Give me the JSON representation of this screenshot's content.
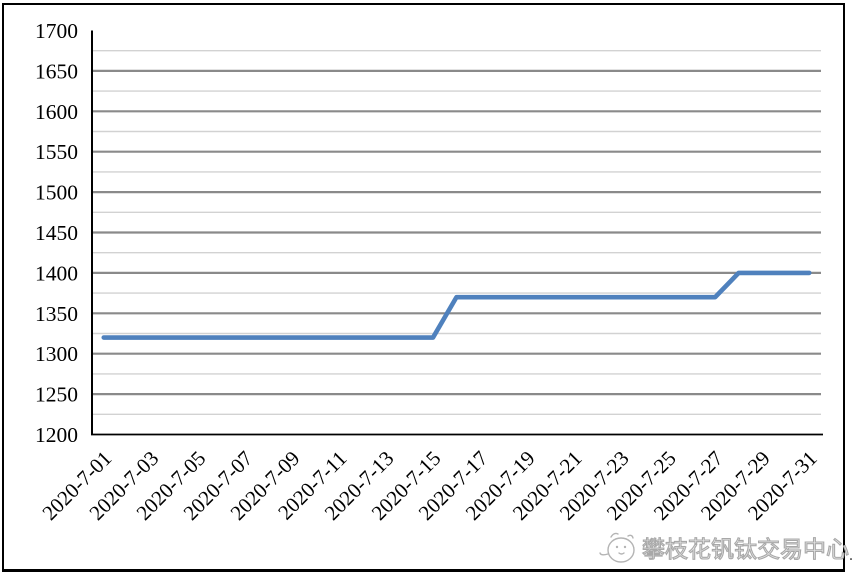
{
  "chart": {
    "watermark": {
      "text": "攀枝花钒钛交易中心",
      "icon": "mascot-face-icon"
    },
    "stray_period": "."
  },
  "chart_data": {
    "type": "line",
    "title": "",
    "xlabel": "",
    "ylabel": "",
    "x": [
      "2020-7-01",
      "2020-7-02",
      "2020-7-03",
      "2020-7-04",
      "2020-7-05",
      "2020-7-06",
      "2020-7-07",
      "2020-7-08",
      "2020-7-09",
      "2020-7-10",
      "2020-7-11",
      "2020-7-12",
      "2020-7-13",
      "2020-7-14",
      "2020-7-15",
      "2020-7-16",
      "2020-7-17",
      "2020-7-18",
      "2020-7-19",
      "2020-7-20",
      "2020-7-21",
      "2020-7-22",
      "2020-7-23",
      "2020-7-24",
      "2020-7-25",
      "2020-7-26",
      "2020-7-27",
      "2020-7-28",
      "2020-7-29",
      "2020-7-30",
      "2020-7-31"
    ],
    "values": [
      1320,
      1320,
      1320,
      1320,
      1320,
      1320,
      1320,
      1320,
      1320,
      1320,
      1320,
      1320,
      1320,
      1320,
      1320,
      1370,
      1370,
      1370,
      1370,
      1370,
      1370,
      1370,
      1370,
      1370,
      1370,
      1370,
      1370,
      1400,
      1400,
      1400,
      1400
    ],
    "x_tick_labels": [
      "2020-7-01",
      "2020-7-03",
      "2020-7-05",
      "2020-7-07",
      "2020-7-09",
      "2020-7-11",
      "2020-7-13",
      "2020-7-15",
      "2020-7-17",
      "2020-7-19",
      "2020-7-21",
      "2020-7-23",
      "2020-7-25",
      "2020-7-27",
      "2020-7-29",
      "2020-7-31"
    ],
    "x_tick_every": 2,
    "y_tick_labels": [
      "1200",
      "1250",
      "1300",
      "1350",
      "1400",
      "1450",
      "1500",
      "1550",
      "1600",
      "1650",
      "1700"
    ],
    "ylim": [
      1200,
      1700
    ],
    "y_major_step": 50,
    "y_minor_step": 25,
    "grid": true,
    "legend_position": "none",
    "line_color": "#4F81BD",
    "major_grid_color": "#8a8a8a",
    "minor_grid_color": "#d2d2d2",
    "axis_color": "#000000",
    "text_color": "#000000"
  }
}
